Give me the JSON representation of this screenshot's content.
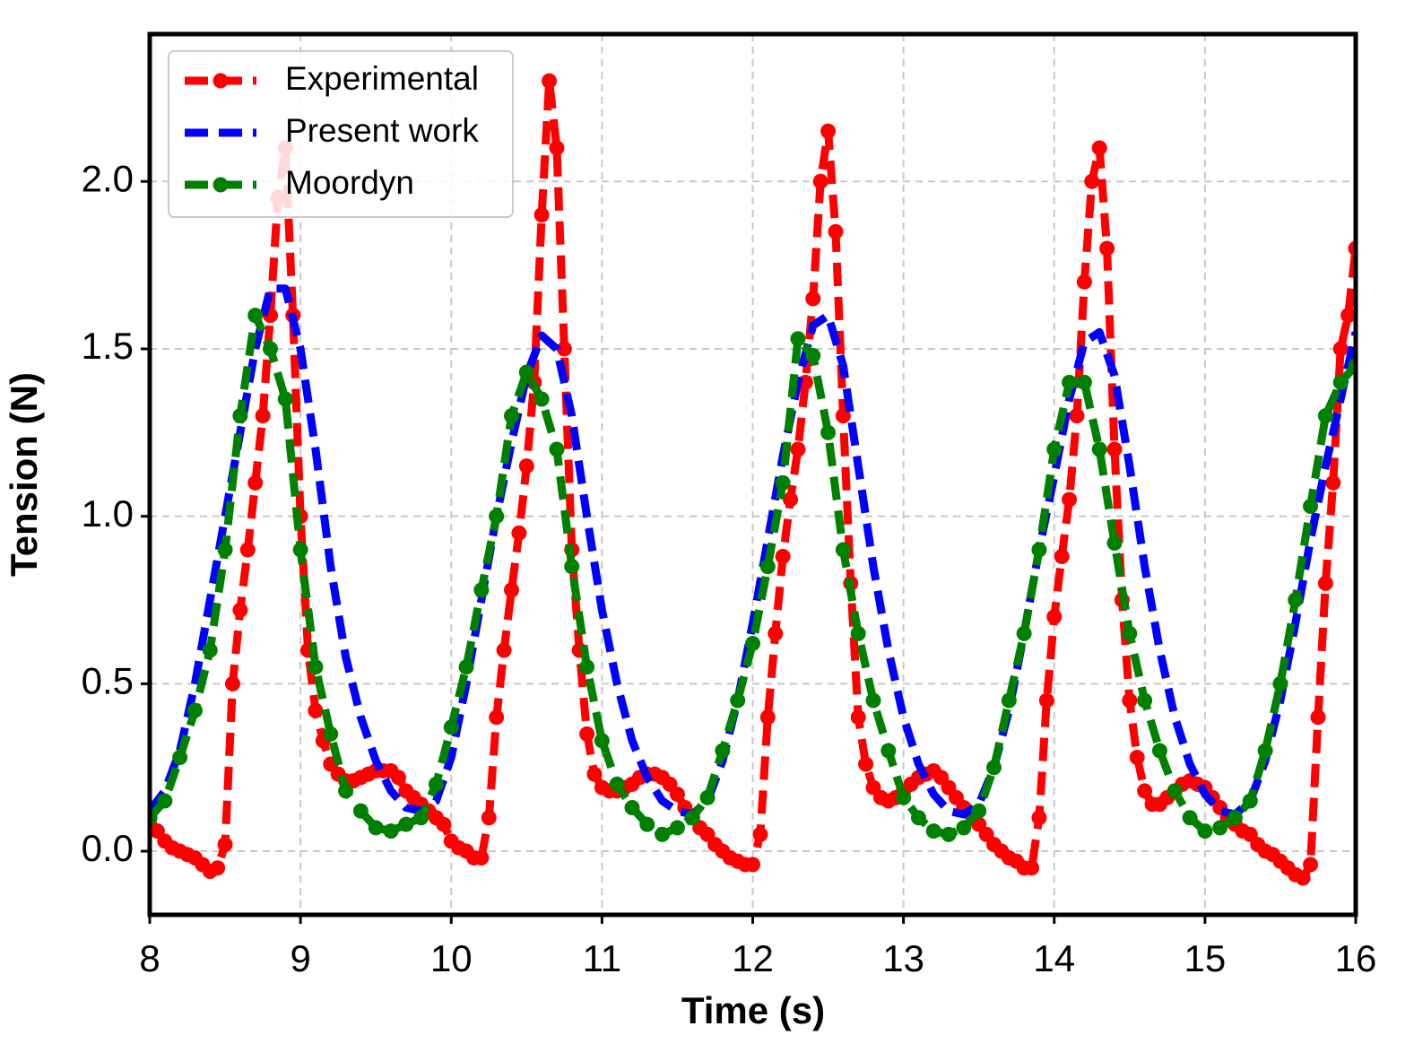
{
  "chart_data": {
    "type": "line",
    "xlabel": "Time (s)",
    "ylabel": "Tension (N)",
    "xlim": [
      8,
      16
    ],
    "ylim": [
      -0.19,
      2.44
    ],
    "xticks": [
      8,
      9,
      10,
      11,
      12,
      13,
      14,
      15,
      16
    ],
    "yticks": [
      {
        "value": 0,
        "label": "0.0"
      },
      0.5,
      {
        "value": 1,
        "label": "1.0"
      },
      1.5,
      {
        "value": 2,
        "label": "2.0"
      }
    ],
    "grid": true,
    "legend": "upper left",
    "series": [
      {
        "name": "Experimental",
        "color": "#ff0000",
        "marker": true,
        "x": [
          8,
          8.05,
          8.1,
          8.15,
          8.2,
          8.25,
          8.3,
          8.35,
          8.4,
          8.45,
          8.5,
          8.55,
          8.6,
          8.65,
          8.7,
          8.75,
          8.8,
          8.85,
          8.9,
          8.95,
          9,
          9.05,
          9.1,
          9.15,
          9.2,
          9.25,
          9.3,
          9.35,
          9.4,
          9.45,
          9.5,
          9.55,
          9.6,
          9.65,
          9.7,
          9.75,
          9.8,
          9.85,
          9.9,
          9.95,
          10,
          10.05,
          10.1,
          10.15,
          10.2,
          10.25,
          10.3,
          10.35,
          10.4,
          10.45,
          10.5,
          10.55,
          10.6,
          10.65,
          10.7,
          10.75,
          10.8,
          10.85,
          10.9,
          10.95,
          11,
          11.05,
          11.1,
          11.15,
          11.2,
          11.25,
          11.3,
          11.35,
          11.4,
          11.45,
          11.5,
          11.55,
          11.6,
          11.65,
          11.7,
          11.75,
          11.8,
          11.85,
          11.9,
          11.95,
          12,
          12.05,
          12.1,
          12.15,
          12.2,
          12.25,
          12.3,
          12.35,
          12.4,
          12.45,
          12.5,
          12.55,
          12.6,
          12.65,
          12.7,
          12.75,
          12.8,
          12.85,
          12.9,
          12.95,
          13,
          13.05,
          13.1,
          13.15,
          13.2,
          13.25,
          13.3,
          13.35,
          13.4,
          13.45,
          13.5,
          13.55,
          13.6,
          13.65,
          13.7,
          13.75,
          13.8,
          13.85,
          13.9,
          13.95,
          14,
          14.05,
          14.1,
          14.15,
          14.2,
          14.25,
          14.3,
          14.35,
          14.4,
          14.45,
          14.5,
          14.55,
          14.6,
          14.65,
          14.7,
          14.75,
          14.8,
          14.85,
          14.9,
          14.95,
          15,
          15.05,
          15.1,
          15.15,
          15.2,
          15.25,
          15.3,
          15.35,
          15.4,
          15.45,
          15.5,
          15.55,
          15.6,
          15.65,
          15.7,
          15.75,
          15.8,
          15.85,
          15.9,
          15.95,
          16
        ],
        "values": [
          0.1,
          0.06,
          0.03,
          0.01,
          0.0,
          -0.01,
          -0.02,
          -0.04,
          -0.06,
          -0.05,
          0.02,
          0.5,
          0.72,
          0.9,
          1.1,
          1.3,
          1.6,
          1.95,
          2.1,
          1.6,
          1.0,
          0.6,
          0.42,
          0.33,
          0.26,
          0.23,
          0.21,
          0.21,
          0.22,
          0.23,
          0.24,
          0.24,
          0.24,
          0.22,
          0.18,
          0.16,
          0.14,
          0.12,
          0.1,
          0.08,
          0.03,
          0.01,
          0.0,
          -0.02,
          -0.02,
          0.1,
          0.4,
          0.6,
          0.78,
          0.95,
          1.15,
          1.4,
          1.9,
          2.3,
          2.1,
          1.5,
          0.9,
          0.6,
          0.35,
          0.23,
          0.19,
          0.18,
          0.18,
          0.19,
          0.2,
          0.22,
          0.23,
          0.23,
          0.22,
          0.2,
          0.17,
          0.13,
          0.1,
          0.07,
          0.05,
          0.02,
          0.0,
          -0.02,
          -0.03,
          -0.04,
          -0.04,
          0.05,
          0.4,
          0.65,
          0.88,
          1.05,
          1.2,
          1.4,
          1.65,
          2.0,
          2.15,
          1.85,
          1.3,
          0.8,
          0.4,
          0.26,
          0.19,
          0.16,
          0.15,
          0.16,
          0.18,
          0.2,
          0.22,
          0.23,
          0.24,
          0.22,
          0.19,
          0.16,
          0.13,
          0.11,
          0.08,
          0.05,
          0.02,
          0.0,
          -0.02,
          -0.03,
          -0.05,
          -0.05,
          0.1,
          0.45,
          0.7,
          0.88,
          1.05,
          1.3,
          1.7,
          2.0,
          2.1,
          1.8,
          1.2,
          0.75,
          0.45,
          0.28,
          0.18,
          0.14,
          0.14,
          0.16,
          0.18,
          0.2,
          0.21,
          0.2,
          0.19,
          0.16,
          0.13,
          0.1,
          0.08,
          0.06,
          0.05,
          0.02,
          0.0,
          -0.01,
          -0.03,
          -0.05,
          -0.07,
          -0.08,
          -0.04,
          0.4,
          0.8,
          1.1,
          1.5,
          1.6,
          1.8
        ]
      },
      {
        "name": "Present work",
        "color": "#0000ff",
        "marker": false,
        "x": [
          8,
          8.1,
          8.2,
          8.3,
          8.4,
          8.5,
          8.6,
          8.7,
          8.8,
          8.9,
          9,
          9.1,
          9.2,
          9.3,
          9.4,
          9.5,
          9.6,
          9.7,
          9.8,
          9.9,
          10,
          10.1,
          10.2,
          10.3,
          10.4,
          10.5,
          10.6,
          10.7,
          10.8,
          10.9,
          11,
          11.1,
          11.2,
          11.3,
          11.4,
          11.5,
          11.6,
          11.7,
          11.8,
          11.9,
          12,
          12.1,
          12.2,
          12.3,
          12.4,
          12.5,
          12.6,
          12.7,
          12.8,
          12.9,
          13,
          13.1,
          13.2,
          13.3,
          13.4,
          13.5,
          13.6,
          13.7,
          13.8,
          13.9,
          14,
          14.1,
          14.2,
          14.3,
          14.4,
          14.5,
          14.6,
          14.7,
          14.8,
          14.9,
          15,
          15.1,
          15.2,
          15.3,
          15.4,
          15.5,
          15.6,
          15.7,
          15.8,
          15.9,
          16
        ],
        "values": [
          0.12,
          0.18,
          0.3,
          0.5,
          0.75,
          1.0,
          1.25,
          1.5,
          1.68,
          1.68,
          1.5,
          1.2,
          0.85,
          0.58,
          0.4,
          0.27,
          0.18,
          0.13,
          0.12,
          0.15,
          0.28,
          0.5,
          0.75,
          1.0,
          1.22,
          1.42,
          1.54,
          1.5,
          1.3,
          1.0,
          0.72,
          0.5,
          0.33,
          0.22,
          0.15,
          0.12,
          0.11,
          0.15,
          0.27,
          0.45,
          0.68,
          0.93,
          1.18,
          1.4,
          1.57,
          1.6,
          1.45,
          1.15,
          0.85,
          0.6,
          0.4,
          0.26,
          0.17,
          0.12,
          0.11,
          0.14,
          0.25,
          0.42,
          0.65,
          0.9,
          1.12,
          1.35,
          1.52,
          1.55,
          1.42,
          1.15,
          0.85,
          0.6,
          0.4,
          0.26,
          0.17,
          0.12,
          0.11,
          0.15,
          0.27,
          0.45,
          0.68,
          0.93,
          1.15,
          1.35,
          1.55
        ]
      },
      {
        "name": "Moordyn",
        "color": "#008000",
        "marker": true,
        "x": [
          8,
          8.1,
          8.2,
          8.3,
          8.4,
          8.5,
          8.6,
          8.7,
          8.8,
          8.9,
          9,
          9.1,
          9.2,
          9.3,
          9.4,
          9.5,
          9.6,
          9.7,
          9.8,
          9.9,
          10,
          10.1,
          10.2,
          10.3,
          10.4,
          10.5,
          10.6,
          10.7,
          10.8,
          10.9,
          11,
          11.1,
          11.2,
          11.3,
          11.4,
          11.5,
          11.6,
          11.7,
          11.8,
          11.9,
          12,
          12.1,
          12.2,
          12.3,
          12.4,
          12.5,
          12.6,
          12.7,
          12.8,
          12.9,
          13,
          13.1,
          13.2,
          13.3,
          13.4,
          13.5,
          13.6,
          13.7,
          13.8,
          13.9,
          14,
          14.1,
          14.2,
          14.3,
          14.4,
          14.5,
          14.6,
          14.7,
          14.8,
          14.9,
          15,
          15.1,
          15.2,
          15.3,
          15.4,
          15.5,
          15.6,
          15.7,
          15.8,
          15.9,
          16
        ],
        "values": [
          0.1,
          0.15,
          0.28,
          0.42,
          0.6,
          0.9,
          1.3,
          1.6,
          1.5,
          1.35,
          0.9,
          0.55,
          0.35,
          0.18,
          0.12,
          0.07,
          0.06,
          0.08,
          0.1,
          0.2,
          0.37,
          0.55,
          0.78,
          1.0,
          1.3,
          1.43,
          1.35,
          1.2,
          0.85,
          0.55,
          0.33,
          0.2,
          0.13,
          0.08,
          0.05,
          0.07,
          0.1,
          0.16,
          0.3,
          0.45,
          0.62,
          0.85,
          1.1,
          1.53,
          1.48,
          1.25,
          0.9,
          0.65,
          0.45,
          0.3,
          0.16,
          0.1,
          0.06,
          0.05,
          0.07,
          0.12,
          0.25,
          0.45,
          0.65,
          0.9,
          1.2,
          1.4,
          1.4,
          1.2,
          0.92,
          0.65,
          0.45,
          0.3,
          0.18,
          0.1,
          0.06,
          0.07,
          0.1,
          0.15,
          0.3,
          0.5,
          0.75,
          1.03,
          1.3,
          1.4,
          1.45
        ]
      }
    ]
  }
}
